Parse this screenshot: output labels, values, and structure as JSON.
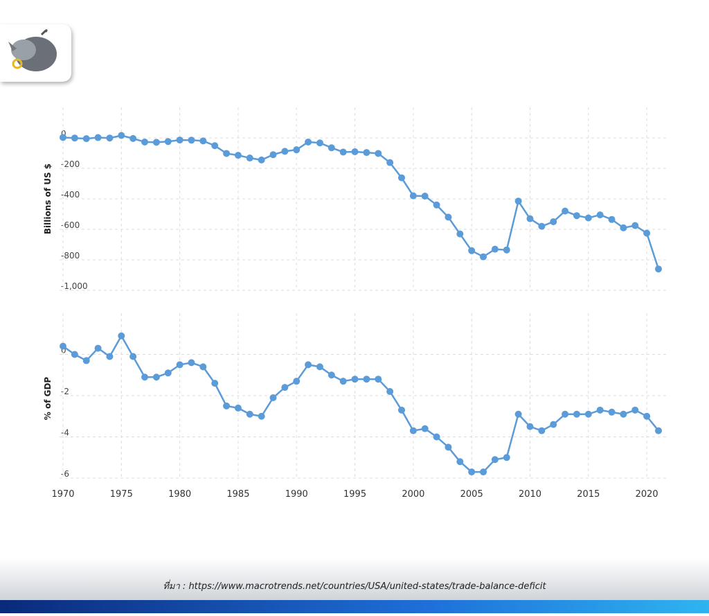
{
  "chart_data": [
    {
      "type": "line",
      "y_label": "Billions of US $",
      "x": [
        1970,
        1971,
        1972,
        1973,
        1974,
        1975,
        1976,
        1977,
        1978,
        1979,
        1980,
        1981,
        1982,
        1983,
        1984,
        1985,
        1986,
        1987,
        1988,
        1989,
        1990,
        1991,
        1992,
        1993,
        1994,
        1995,
        1996,
        1997,
        1998,
        1999,
        2000,
        2001,
        2002,
        2003,
        2004,
        2005,
        2006,
        2007,
        2008,
        2009,
        2010,
        2011,
        2012,
        2013,
        2014,
        2015,
        2016,
        2017,
        2018,
        2019,
        2020,
        2021
      ],
      "values": [
        3,
        -1,
        -5,
        2,
        -1,
        16,
        -4,
        -27,
        -29,
        -24,
        -14,
        -15,
        -20,
        -51,
        -102,
        -114,
        -132,
        -145,
        -110,
        -88,
        -78,
        -27,
        -33,
        -65,
        -93,
        -91,
        -96,
        -102,
        -162,
        -262,
        -380,
        -382,
        -440,
        -520,
        -630,
        -740,
        -780,
        -730,
        -735,
        -415,
        -530,
        -580,
        -550,
        -480,
        -510,
        -525,
        -505,
        -535,
        -590,
        -575,
        -625,
        -860
      ],
      "color": "#5b9bd8",
      "xlim": [
        1970,
        2021
      ],
      "ylim": [
        -1000,
        200
      ],
      "yticks": [
        0,
        -200,
        -400,
        -600,
        -800,
        {
          "value": -1000,
          "label": "-1,000"
        }
      ],
      "grid": true
    },
    {
      "type": "line",
      "y_label": "% of GDP",
      "x": [
        1970,
        1971,
        1972,
        1973,
        1974,
        1975,
        1976,
        1977,
        1978,
        1979,
        1980,
        1981,
        1982,
        1983,
        1984,
        1985,
        1986,
        1987,
        1988,
        1989,
        1990,
        1991,
        1992,
        1993,
        1994,
        1995,
        1996,
        1997,
        1998,
        1999,
        2000,
        2001,
        2002,
        2003,
        2004,
        2005,
        2006,
        2007,
        2008,
        2009,
        2010,
        2011,
        2012,
        2013,
        2014,
        2015,
        2016,
        2017,
        2018,
        2019,
        2020,
        2021
      ],
      "values": [
        0.4,
        0.0,
        -0.3,
        0.3,
        -0.1,
        0.9,
        -0.1,
        -1.1,
        -1.1,
        -0.9,
        -0.5,
        -0.4,
        -0.6,
        -1.4,
        -2.5,
        -2.6,
        -2.9,
        -3.0,
        -2.1,
        -1.6,
        -1.3,
        -0.5,
        -0.6,
        -1.0,
        -1.3,
        -1.2,
        -1.2,
        -1.2,
        -1.8,
        -2.7,
        -3.7,
        -3.6,
        -4.0,
        -4.5,
        -5.2,
        -5.7,
        -5.7,
        -5.1,
        -5.0,
        -2.9,
        -3.5,
        -3.7,
        -3.4,
        -2.9,
        -2.9,
        -2.9,
        -2.7,
        -2.8,
        -2.9,
        -2.7,
        -3.0,
        -3.7
      ],
      "color": "#5b9bd8",
      "xlim": [
        1970,
        2021
      ],
      "ylim": [
        -6,
        2
      ],
      "xticks": [
        1970,
        1975,
        1980,
        1985,
        1990,
        1995,
        2000,
        2005,
        2010,
        2015,
        2020
      ],
      "yticks": [
        0,
        -2,
        -4,
        -6
      ],
      "grid": true
    }
  ],
  "source": "ที่มา : https://www.macrotrends.net/countries/USA/united-states/trade-balance-deficit"
}
